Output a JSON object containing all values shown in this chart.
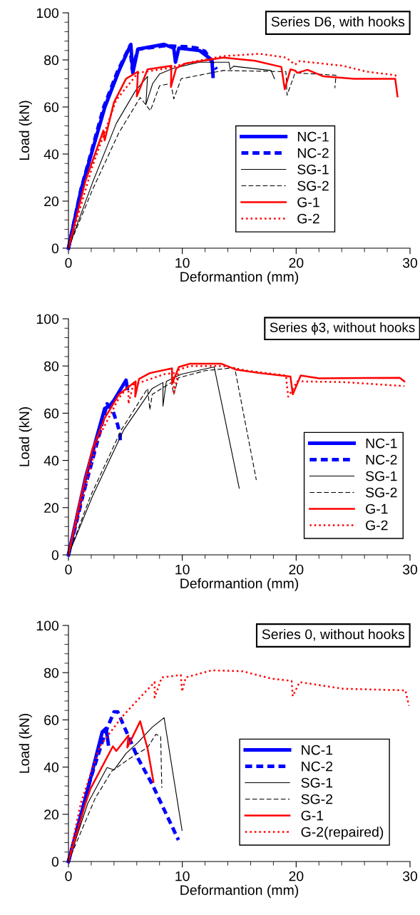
{
  "chart_data": [
    {
      "type": "line",
      "title": "Series D6, with hooks",
      "xlabel": "Deformantion (mm)",
      "ylabel": "Load (kN)",
      "xlim": [
        0,
        30
      ],
      "ylim": [
        0,
        100
      ],
      "xticks": [
        0,
        {
          "value": 2,
          "label": null
        },
        {
          "value": 4,
          "label": null
        },
        {
          "value": 6,
          "label": null
        },
        {
          "value": 8,
          "label": null
        },
        10,
        {
          "value": 12,
          "label": null
        },
        {
          "value": 14,
          "label": null
        },
        {
          "value": 16,
          "label": null
        },
        {
          "value": 18,
          "label": null
        },
        20,
        {
          "value": 22,
          "label": null
        },
        {
          "value": 24,
          "label": null
        },
        {
          "value": 26,
          "label": null
        },
        {
          "value": 28,
          "label": null
        },
        30
      ],
      "yticks": [
        0,
        {
          "value": 4,
          "label": null
        },
        {
          "value": 8,
          "label": null
        },
        {
          "value": 12,
          "label": null
        },
        {
          "value": 16,
          "label": null
        },
        20,
        {
          "value": 24,
          "label": null
        },
        {
          "value": 28,
          "label": null
        },
        {
          "value": 32,
          "label": null
        },
        {
          "value": 36,
          "label": null
        },
        40,
        {
          "value": 44,
          "label": null
        },
        {
          "value": 48,
          "label": null
        },
        {
          "value": 52,
          "label": null
        },
        {
          "value": 56,
          "label": null
        },
        60,
        {
          "value": 64,
          "label": null
        },
        {
          "value": 68,
          "label": null
        },
        {
          "value": 72,
          "label": null
        },
        {
          "value": 76,
          "label": null
        },
        80,
        {
          "value": 84,
          "label": null
        },
        {
          "value": 88,
          "label": null
        },
        {
          "value": 92,
          "label": null
        },
        {
          "value": 96,
          "label": null
        },
        100
      ],
      "grid": false,
      "legend": "lower right",
      "marker": "none",
      "series": [
        {
          "name": "NC-1",
          "color": "#0000ff",
          "line_style": "solid",
          "x": [
            0,
            1.1,
            3.2,
            4.4,
            5.48,
            5.65,
            6.1,
            8.4,
            9.25,
            9.4,
            9.7,
            11.5,
            12.6,
            12.7
          ],
          "values": [
            0,
            24.7,
            60,
            75,
            86.6,
            74.5,
            84.6,
            86.6,
            85,
            79,
            85,
            84,
            80,
            73
          ]
        },
        {
          "name": "NC-2",
          "color": "#0000ff",
          "line_style": "dashed",
          "x": [
            0,
            1.1,
            3.1,
            4.3,
            5.4,
            5.6,
            6.1,
            8.4,
            10.3,
            11.3,
            12,
            13
          ],
          "values": [
            0,
            25,
            60,
            75,
            86,
            76,
            84.5,
            86,
            85.6,
            85,
            83.6,
            76
          ]
        },
        {
          "name": "SG-1",
          "color": "#000000",
          "line_style": "solid",
          "x": [
            0,
            2.1,
            4.2,
            5.9,
            6.95,
            6.8,
            7.4,
            8,
            9.25,
            11.5,
            14.1,
            14.2,
            14.5,
            17.8,
            18.1
          ],
          "values": [
            0,
            27.7,
            53,
            67,
            73,
            61,
            70,
            74,
            76.5,
            79,
            79,
            76,
            77.3,
            75.5,
            72
          ]
        },
        {
          "name": "SG-2",
          "color": "#000000",
          "line_style": "dashed",
          "x": [
            0,
            2.1,
            4.4,
            6.3,
            7.2,
            8,
            9,
            9.25,
            9.9,
            13.6,
            19.1,
            19.2,
            19.9,
            23.5,
            23.4
          ],
          "values": [
            0,
            24.7,
            48.8,
            64,
            58.4,
            69,
            70,
            63.4,
            72,
            75.5,
            75,
            65,
            74.5,
            73.5,
            68
          ]
        },
        {
          "name": "G-1",
          "color": "#ff0000",
          "line_style": "solid",
          "x": [
            0,
            1.5,
            3.07,
            3.18,
            4,
            5.06,
            6.1,
            6,
            6.95,
            9.04,
            9,
            9.46,
            10.3,
            13.6,
            16.4,
            18.7,
            19,
            19.5,
            19.9,
            20.1,
            21,
            22.4,
            25.1,
            28.7,
            28.9
          ],
          "values": [
            0,
            28.7,
            50,
            45.8,
            62,
            72,
            75,
            64.5,
            76,
            77.5,
            68.5,
            76.5,
            78.5,
            81,
            79.6,
            77,
            67.5,
            76,
            75.5,
            74.5,
            75.8,
            73,
            72,
            72,
            64.5
          ]
        },
        {
          "name": "G-2",
          "color": "#ff0000",
          "line_style": "dotted",
          "x": [
            0,
            2.1,
            4.2,
            5.7,
            6.1,
            8.8,
            9.5,
            10.7,
            13.6,
            16.8,
            19.1,
            19.9,
            20.3,
            24.1,
            26.2,
            28.7,
            28.9
          ],
          "values": [
            0,
            34.7,
            63,
            72,
            74.5,
            76.5,
            77.5,
            79,
            81.6,
            82.6,
            81,
            78,
            79.5,
            77.5,
            75,
            73.5,
            72.5
          ]
        }
      ]
    },
    {
      "type": "line",
      "title": "Series ϕ3, without hooks",
      "xlabel": "Deformantion (mm)",
      "ylabel": "Load (kN)",
      "xlim": [
        0,
        30
      ],
      "ylim": [
        0,
        100
      ],
      "xticks": [
        0,
        {
          "value": 2,
          "label": null
        },
        {
          "value": 4,
          "label": null
        },
        {
          "value": 6,
          "label": null
        },
        {
          "value": 8,
          "label": null
        },
        10,
        {
          "value": 12,
          "label": null
        },
        {
          "value": 14,
          "label": null
        },
        {
          "value": 16,
          "label": null
        },
        {
          "value": 18,
          "label": null
        },
        20,
        {
          "value": 22,
          "label": null
        },
        {
          "value": 24,
          "label": null
        },
        {
          "value": 26,
          "label": null
        },
        {
          "value": 28,
          "label": null
        },
        30
      ],
      "yticks": [
        0,
        {
          "value": 4,
          "label": null
        },
        {
          "value": 8,
          "label": null
        },
        {
          "value": 12,
          "label": null
        },
        {
          "value": 16,
          "label": null
        },
        20,
        {
          "value": 24,
          "label": null
        },
        {
          "value": 28,
          "label": null
        },
        {
          "value": 32,
          "label": null
        },
        {
          "value": 36,
          "label": null
        },
        40,
        {
          "value": 44,
          "label": null
        },
        {
          "value": 48,
          "label": null
        },
        {
          "value": 52,
          "label": null
        },
        {
          "value": 56,
          "label": null
        },
        60,
        {
          "value": 64,
          "label": null
        },
        {
          "value": 68,
          "label": null
        },
        {
          "value": 72,
          "label": null
        },
        {
          "value": 76,
          "label": null
        },
        80,
        {
          "value": 84,
          "label": null
        },
        {
          "value": 88,
          "label": null
        },
        {
          "value": 92,
          "label": null
        },
        {
          "value": 96,
          "label": null
        },
        100
      ],
      "grid": false,
      "legend": "lower right",
      "marker": "none",
      "series": [
        {
          "name": "NC-1",
          "color": "#0000ff",
          "line_style": "solid",
          "x": [
            0,
            1.5,
            3.18,
            3.6,
            4,
            5.06,
            5.17
          ],
          "values": [
            0,
            32.7,
            62,
            63,
            65.5,
            74,
            70.5
          ]
        },
        {
          "name": "NC-2",
          "color": "#0000ff",
          "line_style": "dashed",
          "x": [
            0,
            1.3,
            2.76,
            3.39,
            3.9,
            4.33,
            4.54,
            4.54
          ],
          "values": [
            0,
            25.7,
            51.9,
            64,
            61,
            54.9,
            50.9,
            47.8
          ]
        },
        {
          "name": "SG-1",
          "color": "#000000",
          "line_style": "solid",
          "x": [
            0,
            2.1,
            4.85,
            7.36,
            8.3,
            8.3,
            8.6,
            9.9,
            12.8,
            15
          ],
          "values": [
            0,
            24.7,
            52.9,
            70.5,
            73,
            63,
            73.5,
            76.5,
            79.6,
            28.2
          ]
        },
        {
          "name": "SG-2",
          "color": "#000000",
          "line_style": "dashed",
          "x": [
            0,
            1.92,
            4.64,
            6.95,
            7.15,
            7.36,
            9.04,
            9.25,
            9.66,
            12,
            14.6,
            16.5
          ],
          "values": [
            0,
            24.7,
            52.9,
            70.5,
            61.4,
            68,
            73,
            68,
            75,
            78,
            79.3,
            31.7
          ]
        },
        {
          "name": "G-1",
          "color": "#ff0000",
          "line_style": "solid",
          "x": [
            0,
            1.09,
            2.1,
            3.18,
            4.44,
            5.9,
            5.86,
            6.2,
            7.15,
            9.1,
            9.1,
            9.7,
            10.7,
            13.4,
            14.7,
            16.8,
            19.5,
            19.7,
            20.4,
            22,
            29.1,
            29.5
          ],
          "values": [
            0,
            24.7,
            44.8,
            57.9,
            68,
            73.5,
            67,
            74.5,
            77,
            79,
            72.5,
            79.6,
            81,
            81,
            78.5,
            77,
            75.5,
            68,
            76,
            74.8,
            75,
            73.5
          ]
        },
        {
          "name": "G-2",
          "color": "#ff0000",
          "line_style": "dotted",
          "x": [
            0,
            2.55,
            4.44,
            5.27,
            5.27,
            5.69,
            8.4,
            9.25,
            9.25,
            9.7,
            10.7,
            13.6,
            15.7,
            19.1,
            19.3,
            20.1,
            24.1,
            29.5
          ],
          "values": [
            0,
            48.8,
            66.5,
            71.5,
            64,
            72,
            76.5,
            77,
            68,
            78.5,
            80,
            80,
            78,
            76,
            67,
            73.5,
            73.2,
            71.5
          ]
        }
      ]
    },
    {
      "type": "line",
      "title": "Series 0, without hooks",
      "xlabel": "Deformantion (mm)",
      "ylabel": "Load (kN)",
      "xlim": [
        0,
        30
      ],
      "ylim": [
        0,
        100
      ],
      "xticks": [
        0,
        {
          "value": 2,
          "label": null
        },
        {
          "value": 4,
          "label": null
        },
        {
          "value": 6,
          "label": null
        },
        {
          "value": 8,
          "label": null
        },
        10,
        {
          "value": 12,
          "label": null
        },
        {
          "value": 14,
          "label": null
        },
        {
          "value": 16,
          "label": null
        },
        {
          "value": 18,
          "label": null
        },
        20,
        {
          "value": 22,
          "label": null
        },
        {
          "value": 24,
          "label": null
        },
        {
          "value": 26,
          "label": null
        },
        {
          "value": 28,
          "label": null
        },
        30
      ],
      "yticks": [
        0,
        {
          "value": 4,
          "label": null
        },
        {
          "value": 8,
          "label": null
        },
        {
          "value": 12,
          "label": null
        },
        {
          "value": 16,
          "label": null
        },
        20,
        {
          "value": 24,
          "label": null
        },
        {
          "value": 28,
          "label": null
        },
        {
          "value": 32,
          "label": null
        },
        {
          "value": 36,
          "label": null
        },
        40,
        {
          "value": 44,
          "label": null
        },
        {
          "value": 48,
          "label": null
        },
        {
          "value": 52,
          "label": null
        },
        {
          "value": 56,
          "label": null
        },
        60,
        {
          "value": 64,
          "label": null
        },
        {
          "value": 68,
          "label": null
        },
        {
          "value": 72,
          "label": null
        },
        {
          "value": 76,
          "label": null
        },
        80,
        {
          "value": 84,
          "label": null
        },
        {
          "value": 88,
          "label": null
        },
        {
          "value": 92,
          "label": null
        },
        {
          "value": 96,
          "label": null
        },
        100
      ],
      "grid": false,
      "legend": "lower right",
      "marker": "none",
      "series": [
        {
          "name": "NC-1",
          "color": "#0000ff",
          "line_style": "solid",
          "x": [
            0,
            1.7,
            2.97,
            3.3,
            3.5
          ],
          "values": [
            0,
            30.7,
            54.9,
            56.4,
            49.8
          ]
        },
        {
          "name": "NC-2",
          "color": "#0000ff",
          "line_style": "dashed",
          "x": [
            0,
            1.92,
            3.18,
            4,
            4.33,
            6.1,
            7.36,
            9.66
          ],
          "values": [
            0,
            34.7,
            53.9,
            63.4,
            63.4,
            43.8,
            32.7,
            9.1
          ]
        },
        {
          "name": "SG-1",
          "color": "#000000",
          "line_style": "solid",
          "x": [
            0,
            1.7,
            3.39,
            4,
            5.06,
            6.1,
            7.36,
            8.4,
            9.98
          ],
          "values": [
            0,
            24.7,
            39.8,
            38.8,
            45.8,
            50.4,
            56.9,
            60.9,
            13.1
          ]
        },
        {
          "name": "SG-2",
          "color": "#000000",
          "line_style": "dashed",
          "x": [
            0,
            2.34,
            3.8,
            5.27,
            6.95,
            7.68,
            8.1,
            8.2
          ],
          "values": [
            0,
            26.7,
            38.3,
            43.3,
            48.3,
            53.9,
            52.9,
            31.2
          ]
        },
        {
          "name": "G-1",
          "color": "#ff0000",
          "line_style": "solid",
          "x": [
            0,
            1.5,
            1.92,
            3.9,
            4.2,
            5.27,
            5.17,
            6.3,
            6.95,
            7.47
          ],
          "values": [
            0,
            24.7,
            30.7,
            48.8,
            46.8,
            53.4,
            48.3,
            59.4,
            47.8,
            33.7
          ]
        },
        {
          "name": "G-2(repaired)",
          "color": "#ff0000",
          "line_style": "dotted",
          "x": [
            0,
            1.09,
            2.76,
            4.64,
            5.9,
            7.57,
            7.57,
            8.2,
            9.87,
            9.98,
            10.3,
            12.6,
            15.3,
            17.8,
            19.6,
            19.7,
            20.3,
            24.1,
            29.6,
            29.9
          ],
          "values": [
            0,
            24.7,
            48.8,
            60.9,
            67.5,
            76,
            69.5,
            78,
            79,
            72,
            78,
            81,
            80.6,
            77.5,
            76.5,
            70,
            76,
            73.2,
            72.5,
            66
          ]
        }
      ]
    }
  ]
}
